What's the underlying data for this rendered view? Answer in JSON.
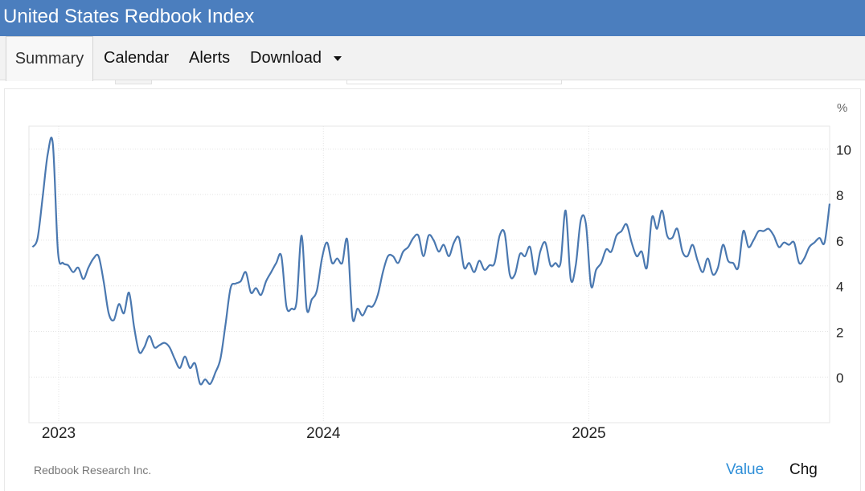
{
  "header": {
    "title": "United States Redbook Index"
  },
  "tabs": [
    {
      "label": "Summary",
      "active": true
    },
    {
      "label": "Calendar",
      "active": false
    },
    {
      "label": "Alerts",
      "active": false
    },
    {
      "label": "Download",
      "active": false,
      "dropdown": true
    }
  ],
  "footer": {
    "source": "Redbook Research Inc.",
    "value_label": "Value",
    "chg_label": "Chg"
  },
  "colors": {
    "header": "#4b7ebe",
    "line": "#4a78b0",
    "value_link": "#2f8fd8"
  },
  "chart_data": {
    "type": "line",
    "unit_label": "%",
    "x_ticks": [
      "2023",
      "2024",
      "2025"
    ],
    "y_ticks": [
      "0",
      "2",
      "4",
      "6",
      "8",
      "10"
    ],
    "ylim": [
      -2,
      11
    ],
    "xlim": [
      "2022-11-21",
      "2025-11-29"
    ],
    "grid": true,
    "series": [
      {
        "points": [
          [
            "2022-11-26",
            5.7
          ],
          [
            "2022-12-03",
            6.1
          ],
          [
            "2022-12-10",
            7.9
          ],
          [
            "2022-12-17",
            9.8
          ],
          [
            "2022-12-24",
            10.2
          ],
          [
            "2022-12-31",
            5.5
          ],
          [
            "2023-01-07",
            5.0
          ],
          [
            "2023-01-14",
            4.9
          ],
          [
            "2023-01-21",
            4.6
          ],
          [
            "2023-01-28",
            4.8
          ],
          [
            "2023-02-04",
            4.3
          ],
          [
            "2023-02-11",
            4.8
          ],
          [
            "2023-02-18",
            5.2
          ],
          [
            "2023-02-25",
            5.3
          ],
          [
            "2023-03-04",
            4.2
          ],
          [
            "2023-03-11",
            2.8
          ],
          [
            "2023-03-18",
            2.5
          ],
          [
            "2023-03-25",
            3.2
          ],
          [
            "2023-04-01",
            2.8
          ],
          [
            "2023-04-08",
            3.7
          ],
          [
            "2023-04-15",
            2.2
          ],
          [
            "2023-04-22",
            1.1
          ],
          [
            "2023-04-29",
            1.3
          ],
          [
            "2023-05-06",
            1.8
          ],
          [
            "2023-05-13",
            1.3
          ],
          [
            "2023-05-20",
            1.4
          ],
          [
            "2023-05-27",
            1.5
          ],
          [
            "2023-06-03",
            1.3
          ],
          [
            "2023-06-10",
            0.8
          ],
          [
            "2023-06-17",
            0.4
          ],
          [
            "2023-06-24",
            0.9
          ],
          [
            "2023-07-01",
            0.4
          ],
          [
            "2023-07-08",
            0.6
          ],
          [
            "2023-07-15",
            -0.3
          ],
          [
            "2023-07-22",
            -0.1
          ],
          [
            "2023-07-29",
            -0.3
          ],
          [
            "2023-08-05",
            0.2
          ],
          [
            "2023-08-12",
            0.8
          ],
          [
            "2023-08-19",
            2.3
          ],
          [
            "2023-08-26",
            3.9
          ],
          [
            "2023-09-02",
            4.1
          ],
          [
            "2023-09-09",
            4.2
          ],
          [
            "2023-09-16",
            4.6
          ],
          [
            "2023-09-23",
            3.7
          ],
          [
            "2023-09-30",
            3.9
          ],
          [
            "2023-10-07",
            3.6
          ],
          [
            "2023-10-14",
            4.2
          ],
          [
            "2023-10-21",
            4.6
          ],
          [
            "2023-10-28",
            5.0
          ],
          [
            "2023-11-04",
            5.3
          ],
          [
            "2023-11-11",
            3.1
          ],
          [
            "2023-11-18",
            3.0
          ],
          [
            "2023-11-25",
            3.3
          ],
          [
            "2023-12-02",
            6.2
          ],
          [
            "2023-12-09",
            3.0
          ],
          [
            "2023-12-16",
            3.4
          ],
          [
            "2023-12-23",
            3.8
          ],
          [
            "2023-12-30",
            5.2
          ],
          [
            "2024-01-06",
            5.9
          ],
          [
            "2024-01-13",
            5.0
          ],
          [
            "2024-01-20",
            5.2
          ],
          [
            "2024-01-27",
            5.0
          ],
          [
            "2024-02-03",
            6.0
          ],
          [
            "2024-02-10",
            2.6
          ],
          [
            "2024-02-17",
            3.0
          ],
          [
            "2024-02-24",
            2.7
          ],
          [
            "2024-03-02",
            3.1
          ],
          [
            "2024-03-09",
            3.1
          ],
          [
            "2024-03-16",
            3.6
          ],
          [
            "2024-03-23",
            4.6
          ],
          [
            "2024-03-30",
            5.3
          ],
          [
            "2024-04-06",
            5.3
          ],
          [
            "2024-04-13",
            5.0
          ],
          [
            "2024-04-20",
            5.5
          ],
          [
            "2024-04-27",
            5.7
          ],
          [
            "2024-05-04",
            6.1
          ],
          [
            "2024-05-11",
            6.2
          ],
          [
            "2024-05-18",
            5.3
          ],
          [
            "2024-05-25",
            6.2
          ],
          [
            "2024-06-01",
            6.0
          ],
          [
            "2024-06-08",
            5.5
          ],
          [
            "2024-06-15",
            5.8
          ],
          [
            "2024-06-22",
            5.3
          ],
          [
            "2024-06-29",
            5.9
          ],
          [
            "2024-07-06",
            6.1
          ],
          [
            "2024-07-13",
            4.8
          ],
          [
            "2024-07-20",
            5.0
          ],
          [
            "2024-07-27",
            4.6
          ],
          [
            "2024-08-03",
            5.1
          ],
          [
            "2024-08-10",
            4.7
          ],
          [
            "2024-08-17",
            4.9
          ],
          [
            "2024-08-24",
            5.0
          ],
          [
            "2024-08-31",
            6.2
          ],
          [
            "2024-09-07",
            6.3
          ],
          [
            "2024-09-14",
            4.5
          ],
          [
            "2024-09-21",
            4.5
          ],
          [
            "2024-09-28",
            5.4
          ],
          [
            "2024-10-05",
            5.3
          ],
          [
            "2024-10-12",
            5.7
          ],
          [
            "2024-10-19",
            4.5
          ],
          [
            "2024-10-26",
            5.5
          ],
          [
            "2024-11-02",
            5.9
          ],
          [
            "2024-11-09",
            4.9
          ],
          [
            "2024-11-16",
            5.0
          ],
          [
            "2024-11-23",
            5.0
          ],
          [
            "2024-11-30",
            7.3
          ],
          [
            "2024-12-07",
            4.3
          ],
          [
            "2024-12-14",
            4.9
          ],
          [
            "2024-12-21",
            6.9
          ],
          [
            "2024-12-28",
            6.7
          ],
          [
            "2025-01-04",
            4.0
          ],
          [
            "2025-01-11",
            4.7
          ],
          [
            "2025-01-18",
            5.0
          ],
          [
            "2025-01-25",
            5.6
          ],
          [
            "2025-02-01",
            5.5
          ],
          [
            "2025-02-08",
            6.2
          ],
          [
            "2025-02-15",
            6.4
          ],
          [
            "2025-02-22",
            6.7
          ],
          [
            "2025-03-01",
            5.9
          ],
          [
            "2025-03-08",
            5.3
          ],
          [
            "2025-03-15",
            5.5
          ],
          [
            "2025-03-22",
            4.8
          ],
          [
            "2025-03-29",
            7.0
          ],
          [
            "2025-04-05",
            6.5
          ],
          [
            "2025-04-12",
            7.3
          ],
          [
            "2025-04-19",
            6.2
          ],
          [
            "2025-04-26",
            6.1
          ],
          [
            "2025-05-03",
            6.5
          ],
          [
            "2025-05-10",
            5.5
          ],
          [
            "2025-05-17",
            5.3
          ],
          [
            "2025-05-24",
            5.8
          ],
          [
            "2025-05-31",
            5.1
          ],
          [
            "2025-06-07",
            4.6
          ],
          [
            "2025-06-14",
            5.2
          ],
          [
            "2025-06-21",
            4.5
          ],
          [
            "2025-06-28",
            4.8
          ],
          [
            "2025-07-05",
            5.8
          ],
          [
            "2025-07-12",
            5.1
          ],
          [
            "2025-07-19",
            5.0
          ],
          [
            "2025-07-26",
            4.8
          ],
          [
            "2025-08-02",
            6.4
          ],
          [
            "2025-08-09",
            5.7
          ],
          [
            "2025-08-16",
            6.0
          ],
          [
            "2025-08-23",
            6.4
          ],
          [
            "2025-08-30",
            6.4
          ],
          [
            "2025-09-06",
            6.5
          ],
          [
            "2025-09-13",
            6.2
          ],
          [
            "2025-09-20",
            5.7
          ],
          [
            "2025-09-27",
            5.9
          ],
          [
            "2025-10-04",
            5.8
          ],
          [
            "2025-10-11",
            5.9
          ],
          [
            "2025-10-18",
            5.0
          ],
          [
            "2025-10-25",
            5.2
          ],
          [
            "2025-11-01",
            5.7
          ],
          [
            "2025-11-08",
            5.9
          ],
          [
            "2025-11-15",
            6.1
          ],
          [
            "2025-11-22",
            5.9
          ],
          [
            "2025-11-29",
            7.6
          ]
        ]
      }
    ]
  }
}
